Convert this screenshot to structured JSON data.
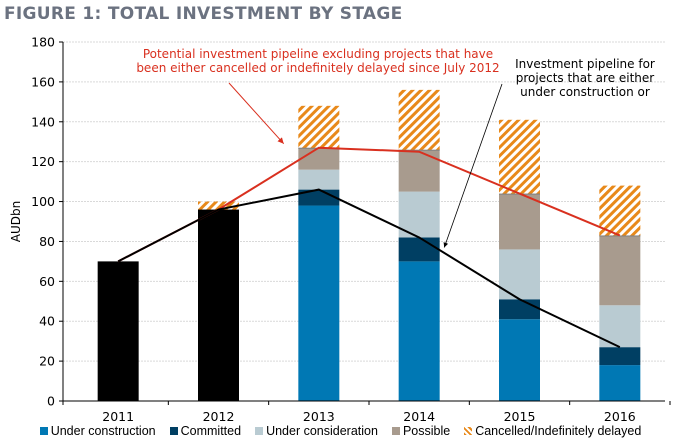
{
  "figure_title": "FIGURE 1: TOTAL INVESTMENT BY STAGE",
  "colors": {
    "under_construction": "#0078b4",
    "committed": "#003f63",
    "under_consideration": "#b9cbd2",
    "possible": "#a89b8e",
    "possible_edge": "#7f7f7f",
    "cancelled": "#e8891a",
    "historical": "#000000",
    "red_line": "#d9301f",
    "black_line": "#000000",
    "grid": "#d9d9d9"
  },
  "chart_data": {
    "type": "bar",
    "stacked": true,
    "title": "FIGURE 1: TOTAL INVESTMENT BY STAGE",
    "xlabel": "",
    "ylabel": "AUDbn",
    "ylim": [
      0,
      180
    ],
    "yticks": [
      0,
      20,
      40,
      60,
      80,
      100,
      120,
      140,
      160,
      180
    ],
    "grid": true,
    "legend_position": "bottom",
    "categories": [
      "2011",
      "2012",
      "2013",
      "2014",
      "2015",
      "2016"
    ],
    "series": [
      {
        "name": "Historical",
        "key": "historical",
        "in_legend": false,
        "values": [
          70,
          96,
          0,
          0,
          0,
          0
        ]
      },
      {
        "name": "Under construction",
        "key": "under_construction",
        "values": [
          0,
          0,
          98,
          70,
          41,
          18
        ]
      },
      {
        "name": "Committed",
        "key": "committed",
        "values": [
          0,
          0,
          8,
          12,
          10,
          9
        ]
      },
      {
        "name": "Under consideration",
        "key": "under_consideration",
        "values": [
          0,
          0,
          10,
          23,
          25,
          21
        ]
      },
      {
        "name": "Possible",
        "key": "possible",
        "values": [
          0,
          0,
          11,
          21,
          28,
          35
        ]
      },
      {
        "name": "Cancelled/Indefinitely delayed",
        "key": "cancelled",
        "hatched": true,
        "values": [
          0,
          4,
          21,
          30,
          37,
          25
        ]
      }
    ],
    "lines": [
      {
        "name": "Potential investment pipeline excluding cancelled/delayed",
        "key": "red_line",
        "values": [
          70,
          96,
          127,
          125,
          104,
          83
        ]
      },
      {
        "name": "Investment pipeline under construction or committed",
        "key": "black_line",
        "values": [
          70,
          96,
          106,
          82,
          51,
          27
        ]
      }
    ],
    "annotations": [
      {
        "key": "red",
        "lines": [
          "Potential investment pipeline excluding projects that have",
          "been either cancelled or indefinitely delayed since July 2012"
        ],
        "arrow_to": {
          "category": "2013",
          "value": 127,
          "offset": -0.35
        }
      },
      {
        "key": "black",
        "lines": [
          "Investment pipeline for",
          "projects that are either",
          "under construction or"
        ],
        "arrow_to": {
          "category": "2014",
          "value": 82,
          "offset": 0.25
        }
      }
    ]
  },
  "legend": [
    {
      "label": "Under construction",
      "key": "under_construction"
    },
    {
      "label": "Committed",
      "key": "committed"
    },
    {
      "label": "Under consideration",
      "key": "under_consideration"
    },
    {
      "label": "Possible",
      "key": "possible"
    },
    {
      "label": "Cancelled/Indefinitely delayed",
      "key": "cancelled"
    }
  ]
}
